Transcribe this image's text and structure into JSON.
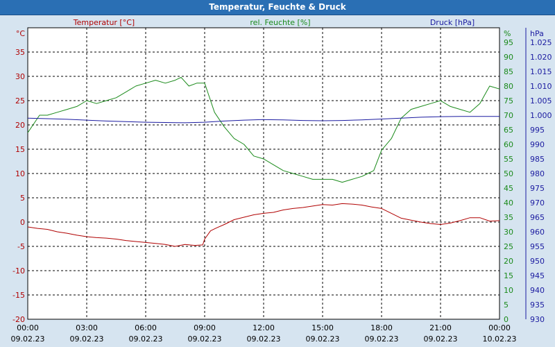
{
  "window": {
    "title": "Temperatur, Feuchte & Druck"
  },
  "colors": {
    "temperature": "#b00000",
    "humidity": "#1a8a1a",
    "pressure": "#1a1aa0",
    "background": "#d6e4f0",
    "plot": "#ffffff",
    "titlebar": "#2a6fb4"
  },
  "chart_data": {
    "type": "line",
    "x_ticks": [
      {
        "time": "00:00",
        "date": "09.02.23"
      },
      {
        "time": "03:00",
        "date": "09.02.23"
      },
      {
        "time": "06:00",
        "date": "09.02.23"
      },
      {
        "time": "09:00",
        "date": "09.02.23"
      },
      {
        "time": "12:00",
        "date": "09.02.23"
      },
      {
        "time": "15:00",
        "date": "09.02.23"
      },
      {
        "time": "18:00",
        "date": "09.02.23"
      },
      {
        "time": "21:00",
        "date": "09.02.23"
      },
      {
        "time": "00:00",
        "date": "10.02.23"
      }
    ],
    "xlim_hours": [
      0,
      24
    ],
    "grid": true,
    "axes": {
      "temperature": {
        "label": "Temperatur [°C]",
        "unit": "°C",
        "ylim": [
          -20,
          40
        ],
        "ticks": [
          "-20",
          "-15",
          "-10",
          "-5",
          "0",
          "5",
          "10",
          "15",
          "20",
          "25",
          "30",
          "35"
        ]
      },
      "humidity": {
        "label": "rel. Feuchte [%]",
        "unit": "%",
        "ylim": [
          0,
          100
        ],
        "ticks": [
          "0",
          "5",
          "10",
          "15",
          "20",
          "25",
          "30",
          "35",
          "40",
          "45",
          "50",
          "55",
          "60",
          "65",
          "70",
          "75",
          "80",
          "85",
          "90",
          "95"
        ]
      },
      "pressure": {
        "label": "Druck [hPa]",
        "unit": "hPa",
        "ylim": [
          930,
          1030
        ],
        "ticks": [
          "930",
          "935",
          "940",
          "945",
          "950",
          "955",
          "960",
          "965",
          "970",
          "975",
          "980",
          "985",
          "990",
          "995",
          "1.000",
          "1.005",
          "1.010",
          "1.015",
          "1.020",
          "1.025"
        ]
      }
    },
    "series": [
      {
        "name": "Temperatur [°C]",
        "axis": "temperature",
        "x": [
          0,
          0.5,
          1,
          1.5,
          2,
          2.5,
          3,
          3.5,
          4,
          4.5,
          5,
          5.5,
          6,
          6.5,
          7,
          7.5,
          8,
          8.5,
          8.9,
          9,
          9.3,
          9.6,
          10,
          10.5,
          11,
          11.5,
          12,
          12.5,
          13,
          13.5,
          14,
          14.5,
          15,
          15.5,
          16,
          16.5,
          17,
          17.5,
          18,
          18.5,
          19,
          19.5,
          20,
          20.5,
          21,
          21.5,
          22,
          22.5,
          23,
          23.5,
          24
        ],
        "values": [
          -1.0,
          -1.3,
          -1.5,
          -2.0,
          -2.3,
          -2.7,
          -3.0,
          -3.2,
          -3.3,
          -3.5,
          -3.8,
          -4.0,
          -4.2,
          -4.4,
          -4.6,
          -5.0,
          -4.6,
          -4.8,
          -4.7,
          -3.5,
          -1.8,
          -1.2,
          -0.5,
          0.5,
          1.0,
          1.5,
          1.8,
          2.0,
          2.5,
          2.8,
          3.0,
          3.3,
          3.6,
          3.5,
          3.8,
          3.7,
          3.5,
          3.1,
          2.8,
          1.8,
          0.8,
          0.4,
          0,
          -0.3,
          -0.5,
          -0.2,
          0.3,
          0.9,
          0.9,
          0.2,
          0.3
        ]
      },
      {
        "name": "rel. Feuchte [%]",
        "axis": "humidity",
        "x": [
          0,
          0.3,
          0.6,
          1,
          1.5,
          2,
          2.5,
          3,
          3.5,
          4,
          4.5,
          5,
          5.5,
          6,
          6.5,
          7,
          7.5,
          7.8,
          8.2,
          8.6,
          9,
          9.2,
          9.5,
          10,
          10.5,
          11,
          11.5,
          12,
          12.5,
          13,
          13.5,
          14,
          14.5,
          15,
          15.5,
          16,
          16.5,
          17,
          17.3,
          17.6,
          18,
          18.5,
          19,
          19.5,
          20,
          20.5,
          21,
          21.5,
          22,
          22.5,
          23,
          23.5,
          24
        ],
        "values": [
          64,
          67,
          70,
          70,
          71,
          72,
          73,
          75,
          74,
          75,
          76,
          78,
          80,
          81,
          82,
          81,
          82,
          83,
          80,
          81,
          81,
          77,
          71,
          66,
          62,
          60,
          56,
          55,
          53,
          51,
          50,
          49,
          48,
          48,
          48,
          47,
          48,
          49,
          50,
          51,
          58,
          62,
          69,
          72,
          73,
          74,
          75,
          73,
          72,
          71,
          74,
          80,
          79
        ]
      },
      {
        "name": "Druck [hPa]",
        "axis": "pressure",
        "x": [
          0,
          1,
          2,
          3,
          4,
          5,
          6,
          7,
          8,
          9,
          10,
          11,
          12,
          13,
          14,
          15,
          16,
          17,
          18,
          19,
          20,
          21,
          22,
          23,
          24
        ],
        "values": [
          999.0,
          998.8,
          998.6,
          998.3,
          998.0,
          997.8,
          997.6,
          997.5,
          997.4,
          997.6,
          998.0,
          998.3,
          998.5,
          998.4,
          998.2,
          998.1,
          998.2,
          998.4,
          998.7,
          999.0,
          999.3,
          999.5,
          999.6,
          999.6,
          999.6
        ]
      }
    ]
  }
}
